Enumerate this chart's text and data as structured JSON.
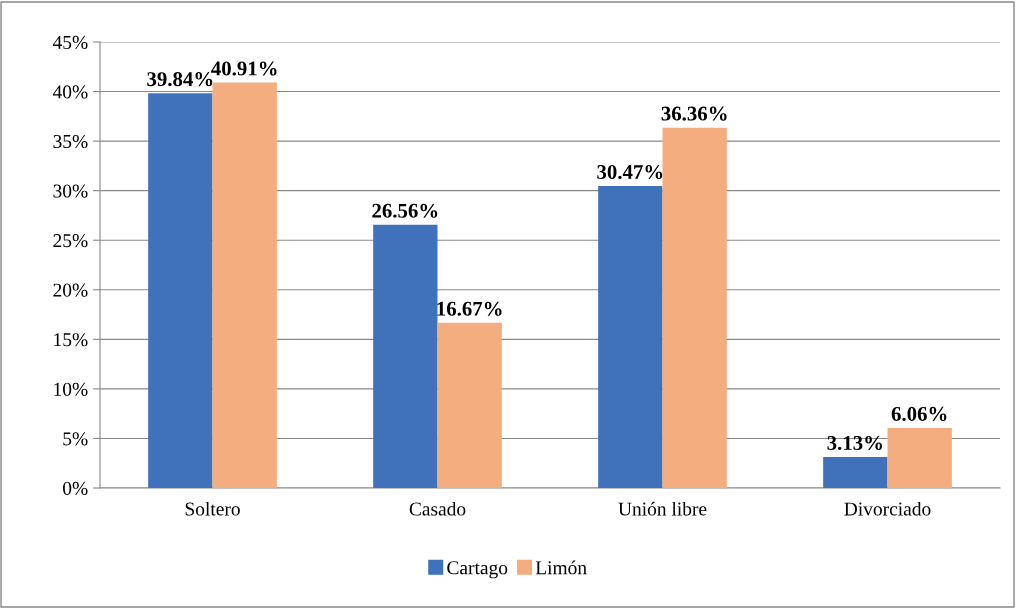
{
  "chart_data": {
    "type": "bar",
    "categories": [
      "Soltero",
      "Casado",
      "Unión libre",
      "Divorciado"
    ],
    "series": [
      {
        "name": "Cartago",
        "color": "#3f72ba",
        "values": [
          39.84,
          26.56,
          30.47,
          3.13
        ],
        "value_labels": [
          "39.84%",
          "26.56%",
          "30.47%",
          "3.13%"
        ]
      },
      {
        "name": "Limón",
        "color": "#f4ad7f",
        "values": [
          40.91,
          16.67,
          36.36,
          6.06
        ],
        "value_labels": [
          "40.91%",
          "16.67%",
          "36.36%",
          "6.06%"
        ]
      }
    ],
    "ylim": [
      0,
      45
    ],
    "yticks": [
      {
        "value": 0,
        "label": "0%"
      },
      {
        "value": 5,
        "label": "5%"
      },
      {
        "value": 10,
        "label": "10%"
      },
      {
        "value": 15,
        "label": "15%"
      },
      {
        "value": 20,
        "label": "20%"
      },
      {
        "value": 25,
        "label": "25%"
      },
      {
        "value": 30,
        "label": "30%"
      },
      {
        "value": 35,
        "label": "35%"
      },
      {
        "value": 40,
        "label": "40%"
      },
      {
        "value": 45,
        "label": "45%"
      }
    ],
    "grid": "y",
    "legend": "bottom"
  }
}
